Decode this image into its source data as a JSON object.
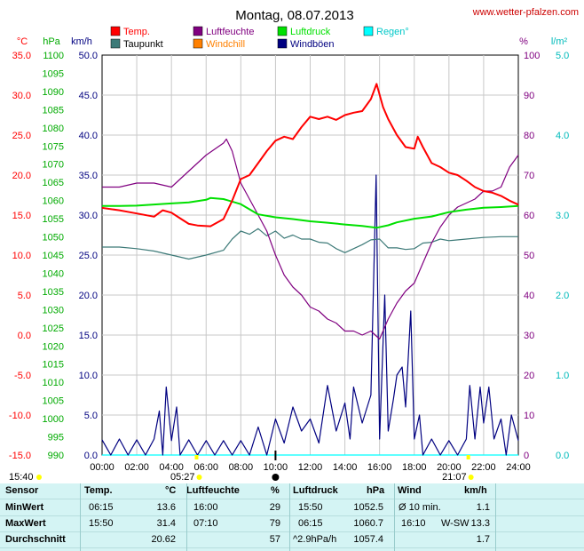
{
  "chart_data": {
    "type": "line",
    "title": "Montag, 08.07.2013",
    "source": "www.wetter-pfalzen.com",
    "x_labels": [
      "00:00",
      "02:00",
      "04:00",
      "06:00",
      "08:00",
      "10:00",
      "12:00",
      "14:00",
      "16:00",
      "18:00",
      "20:00",
      "22:00",
      "24:00"
    ],
    "xlim": [
      0,
      24
    ],
    "axes": {
      "temp": {
        "unit": "°C",
        "ylim": [
          -15,
          35
        ],
        "ticks": [
          "35.0",
          "30.0",
          "25.0",
          "20.0",
          "15.0",
          "10.0",
          "5.0",
          "0.0",
          "-5.0",
          "-10.0",
          "-15.0"
        ]
      },
      "pressure": {
        "unit": "hPa",
        "ylim": [
          990,
          1100
        ],
        "ticks": [
          "1100",
          "1095",
          "1090",
          "1085",
          "1080",
          "1075",
          "1070",
          "1065",
          "1060",
          "1055",
          "1050",
          "1045",
          "1040",
          "1035",
          "1030",
          "1025",
          "1020",
          "1015",
          "1010",
          "1005",
          "1000",
          "995",
          "990"
        ]
      },
      "wind": {
        "unit": "km/h",
        "ylim": [
          0,
          50
        ],
        "ticks": [
          "50.0",
          "45.0",
          "40.0",
          "35.0",
          "30.0",
          "25.0",
          "20.0",
          "15.0",
          "10.0",
          "5.0",
          "0.0"
        ]
      },
      "humidity": {
        "unit": "%",
        "ylim": [
          0,
          100
        ],
        "ticks": [
          "100",
          "90",
          "80",
          "70",
          "60",
          "50",
          "40",
          "30",
          "20",
          "10",
          "0"
        ]
      },
      "rain": {
        "unit": "l/m²",
        "ylim": [
          0,
          5
        ],
        "ticks": [
          "5.0",
          "4.0",
          "3.0",
          "2.0",
          "1.0",
          "0.0"
        ]
      }
    },
    "legend": [
      {
        "name": "Temp.",
        "color": "#ff0000"
      },
      {
        "name": "Taupunkt",
        "color": "#3d7a78"
      },
      {
        "name": "Luftfeuchte",
        "color": "#800080"
      },
      {
        "name": "Windchill",
        "color": "#ff8000"
      },
      {
        "name": "Luftdruck",
        "color": "#00e000"
      },
      {
        "name": "Windböen",
        "color": "#000080"
      },
      {
        "name": "Regen°",
        "color": "#00ffff"
      }
    ],
    "series": [
      {
        "name": "Temp.",
        "axis": "temp",
        "color": "#ff0000",
        "points": [
          [
            0,
            15.9
          ],
          [
            1,
            15.6
          ],
          [
            2,
            15.2
          ],
          [
            3,
            14.8
          ],
          [
            3.5,
            15.6
          ],
          [
            4,
            15.3
          ],
          [
            4.5,
            14.6
          ],
          [
            5,
            13.9
          ],
          [
            5.5,
            13.7
          ],
          [
            6.25,
            13.6
          ],
          [
            7,
            14.5
          ],
          [
            7.5,
            16.8
          ],
          [
            8,
            19.5
          ],
          [
            8.5,
            20.0
          ],
          [
            9,
            21.5
          ],
          [
            9.5,
            23.0
          ],
          [
            10,
            24.3
          ],
          [
            10.5,
            24.8
          ],
          [
            11,
            24.5
          ],
          [
            11.5,
            26.0
          ],
          [
            12,
            27.3
          ],
          [
            12.5,
            27.0
          ],
          [
            13,
            27.3
          ],
          [
            13.5,
            26.9
          ],
          [
            14,
            27.5
          ],
          [
            14.5,
            27.8
          ],
          [
            15,
            28.0
          ],
          [
            15.5,
            29.5
          ],
          [
            15.83,
            31.4
          ],
          [
            16.2,
            28.5
          ],
          [
            16.5,
            27.0
          ],
          [
            17,
            25.0
          ],
          [
            17.5,
            23.5
          ],
          [
            18,
            23.3
          ],
          [
            18.2,
            24.8
          ],
          [
            18.5,
            23.5
          ],
          [
            19,
            21.5
          ],
          [
            19.5,
            21.0
          ],
          [
            20,
            20.3
          ],
          [
            20.5,
            20.0
          ],
          [
            21,
            19.3
          ],
          [
            21.5,
            18.5
          ],
          [
            22,
            18.0
          ],
          [
            22.5,
            17.8
          ],
          [
            23,
            17.4
          ],
          [
            23.5,
            16.8
          ],
          [
            24,
            16.3
          ]
        ]
      },
      {
        "name": "Taupunkt",
        "axis": "temp",
        "color": "#3d7a78",
        "points": [
          [
            0,
            11.0
          ],
          [
            1,
            11.0
          ],
          [
            2,
            10.8
          ],
          [
            3,
            10.5
          ],
          [
            4,
            10.0
          ],
          [
            5,
            9.5
          ],
          [
            6,
            10.0
          ],
          [
            7,
            10.6
          ],
          [
            7.5,
            12.0
          ],
          [
            8,
            13.0
          ],
          [
            8.5,
            12.6
          ],
          [
            9,
            13.3
          ],
          [
            9.5,
            12.4
          ],
          [
            10,
            13.0
          ],
          [
            10.5,
            12.1
          ],
          [
            11,
            12.5
          ],
          [
            11.5,
            12.0
          ],
          [
            12,
            12.0
          ],
          [
            12.5,
            11.6
          ],
          [
            13,
            11.5
          ],
          [
            13.5,
            10.8
          ],
          [
            14,
            10.3
          ],
          [
            14.5,
            10.8
          ],
          [
            15,
            11.3
          ],
          [
            15.5,
            11.9
          ],
          [
            16,
            12.0
          ],
          [
            16.5,
            10.9
          ],
          [
            17,
            10.9
          ],
          [
            17.5,
            10.7
          ],
          [
            18,
            10.8
          ],
          [
            18.5,
            11.5
          ],
          [
            19,
            11.6
          ],
          [
            19.5,
            12.0
          ],
          [
            20,
            11.8
          ],
          [
            21,
            12.0
          ],
          [
            22,
            12.2
          ],
          [
            23,
            12.3
          ],
          [
            24,
            12.3
          ]
        ]
      },
      {
        "name": "Luftfeuchte",
        "axis": "humidity",
        "color": "#800080",
        "points": [
          [
            0,
            67
          ],
          [
            1,
            67
          ],
          [
            2,
            68
          ],
          [
            3,
            68
          ],
          [
            4,
            67
          ],
          [
            5,
            71
          ],
          [
            6,
            75
          ],
          [
            7,
            78
          ],
          [
            7.17,
            79
          ],
          [
            7.5,
            76
          ],
          [
            8,
            68
          ],
          [
            8.5,
            64
          ],
          [
            9,
            60
          ],
          [
            9.5,
            56
          ],
          [
            10,
            50
          ],
          [
            10.5,
            45
          ],
          [
            11,
            42
          ],
          [
            11.5,
            40
          ],
          [
            12,
            37
          ],
          [
            12.5,
            36
          ],
          [
            13,
            34
          ],
          [
            13.5,
            33
          ],
          [
            14,
            31
          ],
          [
            14.5,
            31
          ],
          [
            15,
            30
          ],
          [
            15.5,
            31
          ],
          [
            16,
            29
          ],
          [
            16.5,
            34
          ],
          [
            17,
            38
          ],
          [
            17.5,
            41
          ],
          [
            18,
            43
          ],
          [
            18.5,
            48
          ],
          [
            19,
            53
          ],
          [
            19.5,
            57
          ],
          [
            20,
            60
          ],
          [
            20.5,
            62
          ],
          [
            21,
            63
          ],
          [
            21.5,
            64
          ],
          [
            22,
            66
          ],
          [
            22.5,
            66
          ],
          [
            23,
            67
          ],
          [
            23.5,
            72
          ],
          [
            24,
            75
          ]
        ]
      },
      {
        "name": "Luftdruck",
        "axis": "pressure",
        "color": "#00e000",
        "points": [
          [
            0,
            1058.5
          ],
          [
            1,
            1058.5
          ],
          [
            2,
            1058.6
          ],
          [
            3,
            1058.9
          ],
          [
            4,
            1059.2
          ],
          [
            5,
            1059.5
          ],
          [
            6,
            1060.2
          ],
          [
            6.25,
            1060.7
          ],
          [
            7,
            1060.4
          ],
          [
            8,
            1059.0
          ],
          [
            9,
            1056.2
          ],
          [
            10,
            1055.4
          ],
          [
            11,
            1054.9
          ],
          [
            12,
            1054.3
          ],
          [
            13,
            1053.9
          ],
          [
            14,
            1053.4
          ],
          [
            15,
            1053.0
          ],
          [
            15.83,
            1052.5
          ],
          [
            16.5,
            1053.2
          ],
          [
            17,
            1054.0
          ],
          [
            18,
            1055.0
          ],
          [
            19,
            1055.6
          ],
          [
            20,
            1056.8
          ],
          [
            21,
            1057.5
          ],
          [
            22,
            1058.0
          ],
          [
            23,
            1058.2
          ],
          [
            24,
            1058.5
          ]
        ]
      },
      {
        "name": "Windböen",
        "axis": "wind",
        "color": "#000080",
        "points": [
          [
            0,
            1.9
          ],
          [
            0.5,
            0
          ],
          [
            1,
            2
          ],
          [
            1.5,
            0
          ],
          [
            2,
            1.9
          ],
          [
            2.5,
            0
          ],
          [
            3,
            2
          ],
          [
            3.3,
            5.5
          ],
          [
            3.5,
            0
          ],
          [
            3.7,
            8.5
          ],
          [
            4,
            1.8
          ],
          [
            4.3,
            6
          ],
          [
            4.5,
            0
          ],
          [
            5,
            1.9
          ],
          [
            5.5,
            0
          ],
          [
            6,
            1.8
          ],
          [
            6.5,
            0
          ],
          [
            7,
            1.8
          ],
          [
            7.5,
            0
          ],
          [
            8,
            1.8
          ],
          [
            8.5,
            0
          ],
          [
            9,
            3.5
          ],
          [
            9.5,
            0
          ],
          [
            10,
            4.5
          ],
          [
            10.5,
            1.5
          ],
          [
            11,
            6
          ],
          [
            11.5,
            3
          ],
          [
            12,
            4.5
          ],
          [
            12.5,
            1.5
          ],
          [
            13,
            8.7
          ],
          [
            13.5,
            3
          ],
          [
            14,
            6.5
          ],
          [
            14.3,
            2
          ],
          [
            14.5,
            8.5
          ],
          [
            15,
            4
          ],
          [
            15.5,
            7.5
          ],
          [
            15.8,
            35
          ],
          [
            16,
            2
          ],
          [
            16.3,
            20
          ],
          [
            16.5,
            3
          ],
          [
            16.8,
            7
          ],
          [
            17,
            10
          ],
          [
            17.3,
            11
          ],
          [
            17.5,
            6
          ],
          [
            17.8,
            18
          ],
          [
            18,
            2
          ],
          [
            18.3,
            5
          ],
          [
            18.5,
            0
          ],
          [
            19,
            2
          ],
          [
            19.5,
            0
          ],
          [
            20,
            1.8
          ],
          [
            20.5,
            0
          ],
          [
            21,
            2
          ],
          [
            21.2,
            8.7
          ],
          [
            21.5,
            2
          ],
          [
            21.8,
            8.5
          ],
          [
            22,
            4
          ],
          [
            22.3,
            8.5
          ],
          [
            22.6,
            2
          ],
          [
            23,
            4.5
          ],
          [
            23.3,
            0
          ],
          [
            23.6,
            5
          ],
          [
            24,
            1.8
          ]
        ]
      },
      {
        "name": "Regen°",
        "axis": "rain",
        "color": "#00ffff",
        "points": [
          [
            0,
            0
          ],
          [
            24,
            0
          ]
        ]
      }
    ],
    "markers": {
      "sunrise": "05:27",
      "sunset": "21:07",
      "now": "15:40"
    }
  },
  "stats": {
    "headers": {
      "sensor": "Sensor",
      "temp": "Temp.",
      "temp_unit": "°C",
      "hum": "Luftfeuchte",
      "hum_unit": "%",
      "press": "Luftdruck",
      "press_unit": "hPa",
      "wind": "Wind",
      "wind_unit": "km/h"
    },
    "rows": [
      {
        "label": "MinWert",
        "temp_time": "06:15",
        "temp_val": "13.6",
        "hum_time": "16:00",
        "hum_val": "29",
        "press_time": "15:50",
        "press_val": "1052.5",
        "wind_label": "Ø 10 min.",
        "wind_val": "1.1"
      },
      {
        "label": "MaxWert",
        "temp_time": "15:50",
        "temp_val": "31.4",
        "hum_time": "07:10",
        "hum_val": "79",
        "press_time": "06:15",
        "press_val": "1060.7",
        "wind_label": "16:10",
        "wind_dir": "W-SW",
        "wind_val": "13.3"
      },
      {
        "label": "Durchschnitt",
        "temp_time": "",
        "temp_val": "20.62",
        "hum_time": "",
        "hum_val": "57",
        "press_time": "^2.9hPa/h",
        "press_val": "1057.4",
        "wind_label": "",
        "wind_val": "1.7"
      }
    ]
  }
}
